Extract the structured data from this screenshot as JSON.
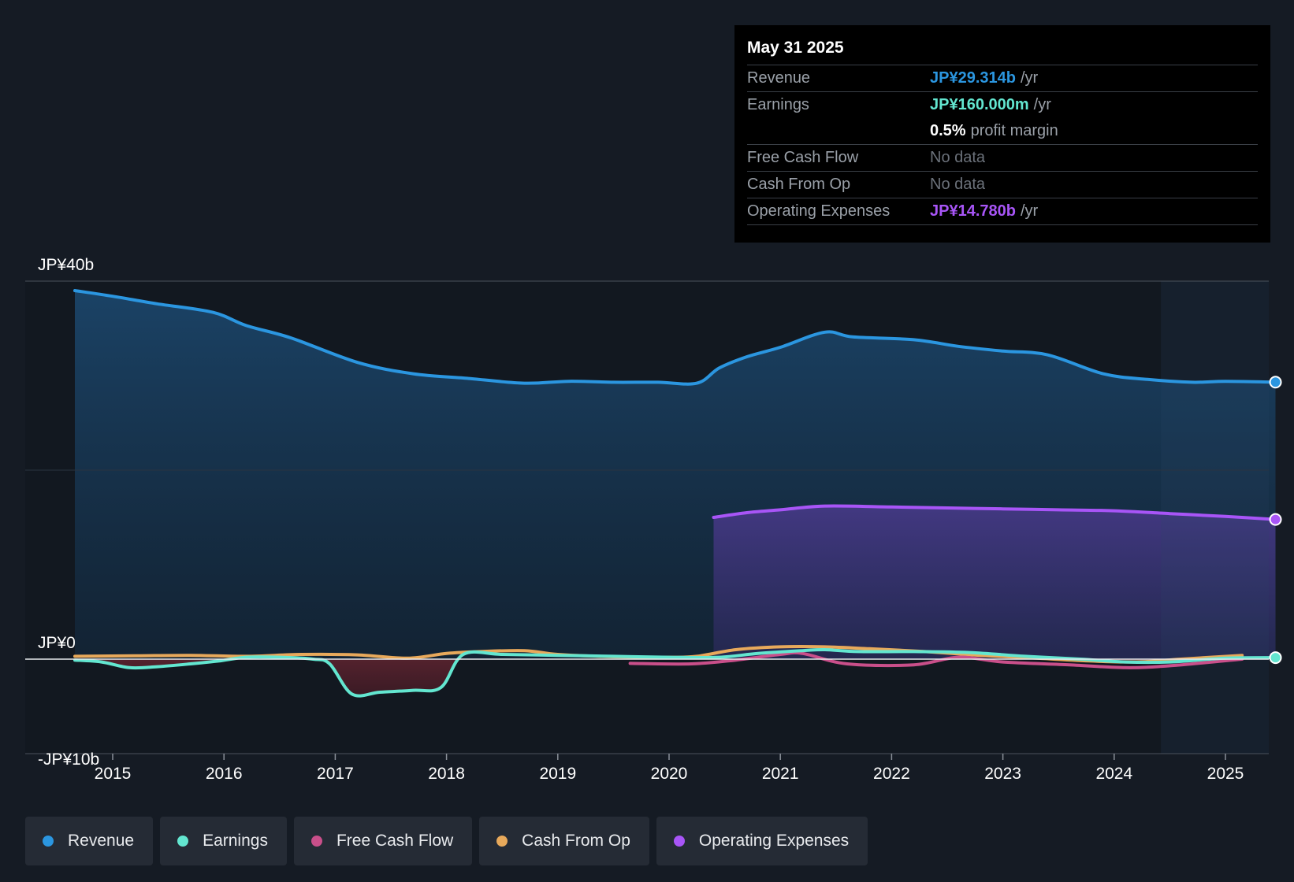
{
  "tooltip": {
    "date": "May 31 2025",
    "rows": [
      {
        "label": "Revenue",
        "value": "JP¥29.314b",
        "unit": "/yr",
        "color": "#2b96e0"
      },
      {
        "label": "Earnings",
        "value": "JP¥160.000m",
        "unit": "/yr",
        "color": "#63e6d0"
      },
      {
        "label": "",
        "value": "0.5%",
        "unit": "profit margin",
        "color": "#ffffff"
      },
      {
        "label": "Free Cash Flow",
        "value": "No data",
        "unit": "",
        "color": ""
      },
      {
        "label": "Cash From Op",
        "value": "No data",
        "unit": "",
        "color": ""
      },
      {
        "label": "Operating Expenses",
        "value": "JP¥14.780b",
        "unit": "/yr",
        "color": "#a855f7"
      }
    ]
  },
  "legend": [
    {
      "label": "Revenue",
      "color": "#2b96e0"
    },
    {
      "label": "Earnings",
      "color": "#63e6d0"
    },
    {
      "label": "Free Cash Flow",
      "color": "#c94f8a"
    },
    {
      "label": "Cash From Op",
      "color": "#e8a95b"
    },
    {
      "label": "Operating Expenses",
      "color": "#a855f7"
    }
  ],
  "chart_data": {
    "type": "area",
    "y_labels": [
      "JP¥40b",
      "JP¥0",
      "-JP¥10b"
    ],
    "ylim": [
      -10,
      40
    ],
    "xlim": [
      2014.6,
      2025.45
    ],
    "x_ticks": [
      2015,
      2016,
      2017,
      2018,
      2019,
      2020,
      2021,
      2022,
      2023,
      2024,
      2025
    ],
    "x_tick_labels": [
      "2015",
      "2016",
      "2017",
      "2018",
      "2019",
      "2020",
      "2021",
      "2022",
      "2023",
      "2024",
      "2025"
    ],
    "forecast_start": 2024.42,
    "series": [
      {
        "name": "Revenue",
        "color": "#2b96e0",
        "fill": "area",
        "x": [
          2014.66,
          2015.0,
          2015.4,
          2015.9,
          2016.2,
          2016.6,
          2017.2,
          2017.7,
          2018.2,
          2018.7,
          2019.1,
          2019.5,
          2019.9,
          2020.25,
          2020.45,
          2020.7,
          2021.0,
          2021.4,
          2021.65,
          2022.2,
          2022.6,
          2023.0,
          2023.4,
          2023.9,
          2024.3,
          2024.7,
          2025.0,
          2025.45
        ],
        "values": [
          39.0,
          38.4,
          37.6,
          36.7,
          35.3,
          34.0,
          31.4,
          30.2,
          29.7,
          29.2,
          29.4,
          29.3,
          29.3,
          29.2,
          30.8,
          32.0,
          33.0,
          34.6,
          34.1,
          33.8,
          33.1,
          32.6,
          32.2,
          30.2,
          29.6,
          29.3,
          29.4,
          29.314
        ]
      },
      {
        "name": "Operating Expenses",
        "color": "#a855f7",
        "fill": "area",
        "x": [
          2020.4,
          2020.7,
          2021.0,
          2021.4,
          2022.0,
          2022.5,
          2023.0,
          2023.5,
          2024.0,
          2024.5,
          2025.0,
          2025.45
        ],
        "values": [
          15.0,
          15.5,
          15.8,
          16.2,
          16.1,
          16.0,
          15.9,
          15.8,
          15.7,
          15.4,
          15.1,
          14.78
        ]
      },
      {
        "name": "Earnings",
        "color": "#63e6d0",
        "fill": "negative",
        "x": [
          2014.66,
          2014.9,
          2015.15,
          2015.4,
          2015.7,
          2015.95,
          2016.2,
          2016.5,
          2016.8,
          2016.95,
          2017.15,
          2017.4,
          2017.7,
          2017.95,
          2018.15,
          2018.5,
          2019.0,
          2019.5,
          2020.0,
          2020.45,
          2020.8,
          2021.2,
          2021.4,
          2021.7,
          2022.2,
          2022.7,
          2023.2,
          2023.7,
          2024.1,
          2024.5,
          2025.0,
          2025.45
        ],
        "values": [
          -0.1,
          -0.3,
          -0.9,
          -0.8,
          -0.5,
          -0.2,
          0.2,
          0.2,
          0.0,
          -0.5,
          -3.7,
          -3.5,
          -3.3,
          -3.0,
          0.5,
          0.5,
          0.4,
          0.3,
          0.2,
          0.2,
          0.6,
          0.9,
          1.0,
          0.8,
          0.8,
          0.7,
          0.3,
          0.0,
          -0.3,
          -0.3,
          0.1,
          0.16
        ]
      },
      {
        "name": "Free Cash Flow",
        "color": "#c94f8a",
        "fill": "none",
        "x": [
          2019.65,
          2020.2,
          2020.6,
          2021.0,
          2021.2,
          2021.6,
          2022.2,
          2022.6,
          2023.0,
          2023.6,
          2024.1,
          2024.5,
          2025.15
        ],
        "values": [
          -0.45,
          -0.5,
          -0.1,
          0.5,
          0.6,
          -0.5,
          -0.6,
          0.2,
          -0.3,
          -0.6,
          -0.9,
          -0.7,
          0.0
        ]
      },
      {
        "name": "Cash From Op",
        "color": "#e8a95b",
        "fill": "none",
        "x": [
          2014.66,
          2015.2,
          2015.7,
          2016.2,
          2016.7,
          2017.2,
          2017.65,
          2018.0,
          2018.3,
          2018.7,
          2019.0,
          2019.5,
          2020.0,
          2020.25,
          2020.6,
          2021.0,
          2021.4,
          2021.8,
          2022.3,
          2022.8,
          2023.3,
          2023.8,
          2024.2,
          2024.6,
          2025.15
        ],
        "values": [
          0.3,
          0.35,
          0.4,
          0.3,
          0.5,
          0.45,
          0.1,
          0.6,
          0.8,
          0.9,
          0.5,
          0.25,
          0.2,
          0.3,
          1.0,
          1.3,
          1.3,
          1.1,
          0.8,
          0.4,
          0.1,
          -0.2,
          -0.3,
          0.0,
          0.4
        ]
      }
    ]
  }
}
